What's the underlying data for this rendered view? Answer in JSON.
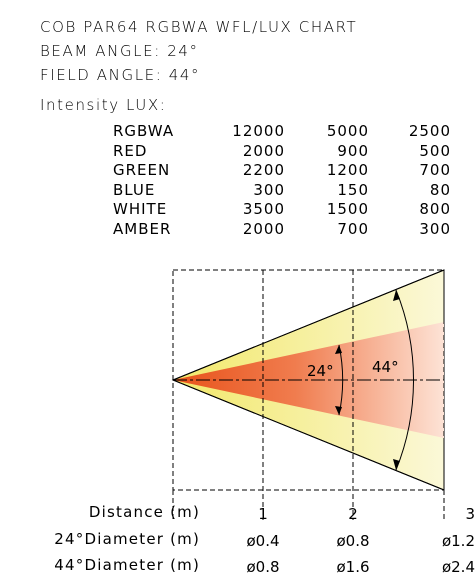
{
  "header": {
    "title": "COB PAR64 RGBWA WFL/LUX CHART",
    "beam_angle": "BEAM ANGLE: 24°",
    "field_angle": "FIELD ANGLE: 44°",
    "intensity_label": "Intensity LUX:"
  },
  "lux_table": {
    "rows": [
      {
        "label": "RGBWA",
        "values": [
          "12000",
          "5000",
          "2500"
        ]
      },
      {
        "label": "RED",
        "values": [
          "2000",
          "900",
          "500"
        ]
      },
      {
        "label": "GREEN",
        "values": [
          "2200",
          "1200",
          "700"
        ]
      },
      {
        "label": "BLUE",
        "values": [
          "300",
          "150",
          "80"
        ]
      },
      {
        "label": "WHITE",
        "values": [
          "3500",
          "1500",
          "800"
        ]
      },
      {
        "label": "AMBER",
        "values": [
          "2000",
          "700",
          "300"
        ]
      }
    ]
  },
  "diagram": {
    "beam_angle_label": "24°",
    "field_angle_label": "44°"
  },
  "distance_table": {
    "rows": [
      {
        "label": "Distance (m)",
        "values": [
          "1",
          "2",
          "3"
        ]
      },
      {
        "label": "24°Diameter (m)",
        "values": [
          "ø0.4",
          "ø0.8",
          "ø1.2"
        ]
      },
      {
        "label": "44°Diameter (m)",
        "values": [
          "ø0.8",
          "ø1.6",
          "ø2.4"
        ]
      }
    ]
  }
}
